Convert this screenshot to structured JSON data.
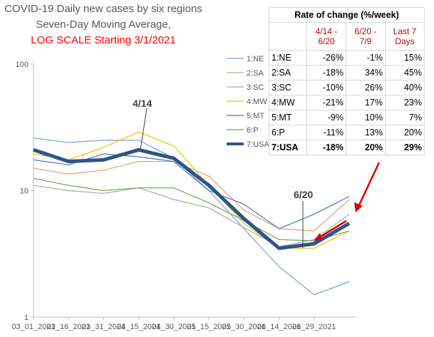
{
  "title": {
    "line1": "COVID-19 Daily new cases by six regions",
    "line2": "Seven-Day Moving Average,",
    "line3": "LOG SCALE Starting 3/1/2021"
  },
  "colors": {
    "NE": "#7f9fd0",
    "SA": "#e0a070",
    "SC": "#a9a9a9",
    "MW": "#f2c200",
    "MT": "#4a78c0",
    "P": "#6aa84f",
    "USA": "#2f5587",
    "annotation_red": "#e00000"
  },
  "table": {
    "title": "Rate of change (%/week)",
    "headers": [
      "4/14 - 6/20",
      "6/20 - 7/9",
      "Last 7 Days"
    ],
    "rows": [
      {
        "region": "1:NE",
        "v1": "-26%",
        "v2": "-1%",
        "v3": "15%"
      },
      {
        "region": "2:SA",
        "v1": "-18%",
        "v2": "34%",
        "v3": "45%"
      },
      {
        "region": "3:SC",
        "v1": "-10%",
        "v2": "26%",
        "v3": "40%"
      },
      {
        "region": "4:MW",
        "v1": "-21%",
        "v2": "17%",
        "v3": "23%"
      },
      {
        "region": "5:MT",
        "v1": "-9%",
        "v2": "10%",
        "v3": "7%"
      },
      {
        "region": "6:P",
        "v1": "-11%",
        "v2": "13%",
        "v3": "20%"
      },
      {
        "region": "7:USA",
        "v1": "-18%",
        "v2": "20%",
        "v3": "29%"
      }
    ]
  },
  "annotations": {
    "peak": "4/14",
    "trough": "6/20"
  },
  "chart_data": {
    "type": "line",
    "y_scale": "log",
    "ylim": [
      1,
      100
    ],
    "y_ticks": [
      "1",
      "10",
      "100"
    ],
    "x_ticks": [
      "03_01_2021",
      "03_16_2021",
      "03_31_2021",
      "04_15_2021",
      "04_30_2021",
      "05_15_2021",
      "05_30_2021",
      "06_14_2021",
      "06_29_2021"
    ],
    "x": [
      "03_01_2021",
      "03_16_2021",
      "03_31_2021",
      "04_15_2021",
      "04_30_2021",
      "05_15_2021",
      "05_30_2021",
      "06_14_2021",
      "06_29_2021",
      "07_09_2021"
    ],
    "grid": false,
    "legend": "top-center",
    "series": [
      {
        "name": "1:NE",
        "color": "NE",
        "values": [
          26,
          24,
          25,
          25,
          18,
          10,
          5,
          2.5,
          1.5,
          1.9
        ]
      },
      {
        "name": "2:SA",
        "color": "SA",
        "values": [
          15,
          13.5,
          14.5,
          17,
          17,
          13,
          7,
          5,
          4.8,
          8.5
        ]
      },
      {
        "name": "3:SC",
        "color": "SC",
        "values": [
          11,
          10,
          9.5,
          10.5,
          8.5,
          7.3,
          5.1,
          3.6,
          4.1,
          6.5
        ]
      },
      {
        "name": "4:MW",
        "color": "MW",
        "values": [
          19.5,
          17.5,
          22,
          29,
          22.5,
          11,
          5.5,
          3.5,
          3.5,
          4.8
        ]
      },
      {
        "name": "5:MT",
        "color": "MT",
        "values": [
          17.5,
          16,
          19.5,
          18.5,
          17,
          10,
          7.8,
          5,
          6.5,
          9
        ]
      },
      {
        "name": "6:P",
        "color": "P",
        "values": [
          12.5,
          11,
          10,
          10.5,
          10.5,
          8,
          5.8,
          4.1,
          4,
          4.8
        ]
      },
      {
        "name": "7:USA",
        "color": "USA",
        "values": [
          21,
          17,
          17.5,
          21,
          18,
          11,
          6,
          3.5,
          3.8,
          5.5
        ]
      }
    ]
  }
}
